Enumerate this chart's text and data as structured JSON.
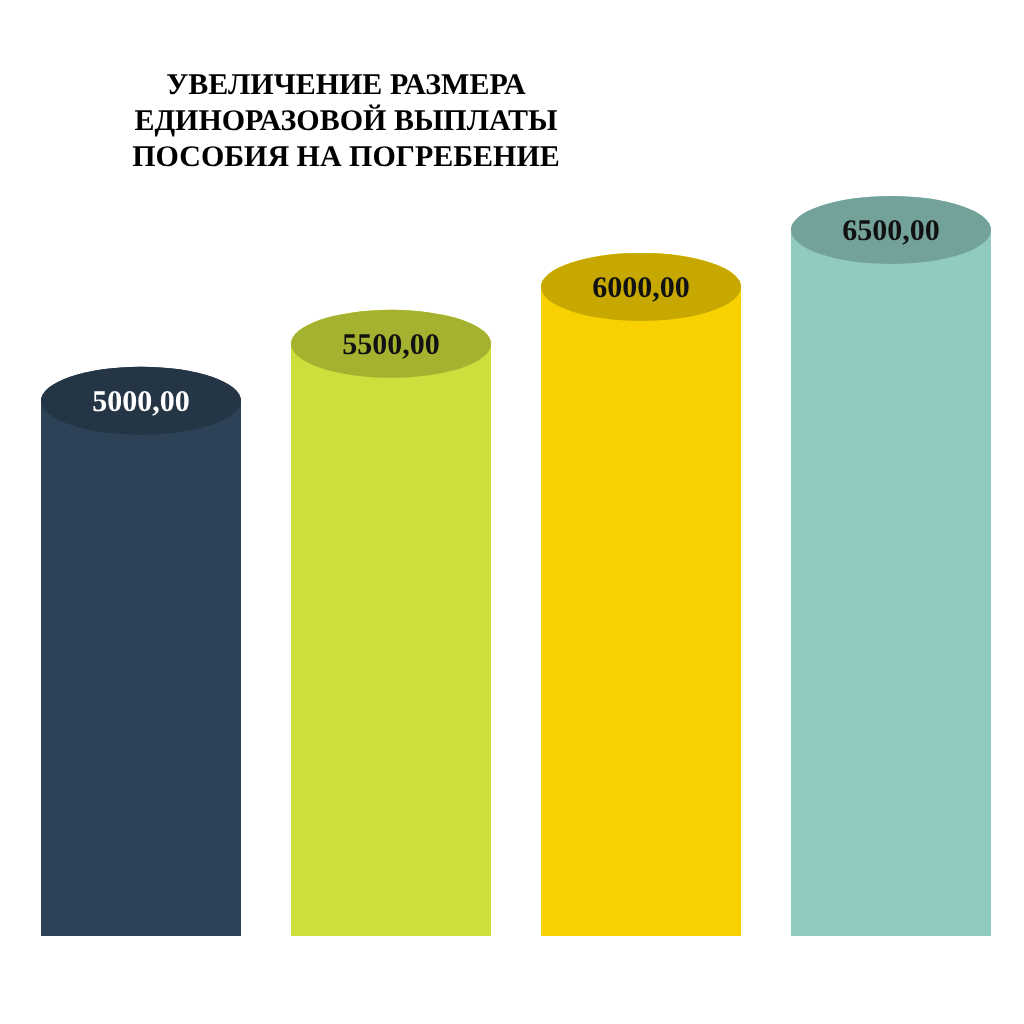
{
  "chart_data": {
    "type": "bar",
    "title": "УВЕЛИЧЕНИЕ РАЗМЕРА ЕДИНОРАЗОВОЙ ВЫПЛАТЫ ПОСОБИЯ НА ПОГРЕБЕНИЕ",
    "categories": [
      null,
      null,
      null,
      null
    ],
    "values": [
      5000,
      5500,
      6000,
      6500
    ],
    "value_labels": [
      "5000,00",
      "5500,00",
      "6000,00",
      "6500,00"
    ],
    "colors": [
      "#2d4257",
      "#cddf3c",
      "#f7d200",
      "#90cac0"
    ],
    "tick_labels": false
  }
}
